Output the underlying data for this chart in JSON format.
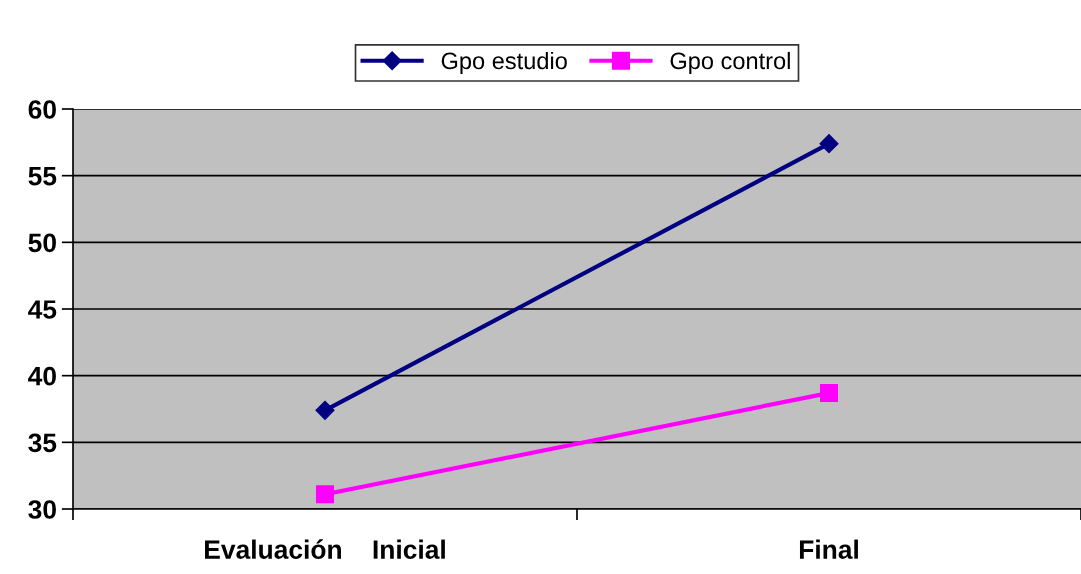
{
  "chart_data": {
    "type": "line",
    "categories": [
      "Evaluación    Inicial",
      "Final"
    ],
    "series": [
      {
        "name": "Gpo estudio",
        "color": "#000080",
        "marker": "diamond",
        "values": [
          37.4,
          57.4
        ]
      },
      {
        "name": "Gpo control",
        "color": "#ff00ff",
        "marker": "square",
        "values": [
          31.1,
          38.7
        ]
      }
    ],
    "ylim": [
      30,
      60
    ],
    "yticks": [
      30,
      35,
      40,
      45,
      50,
      55,
      60
    ],
    "grid": "y",
    "legend": "top",
    "line_style": "solid"
  }
}
